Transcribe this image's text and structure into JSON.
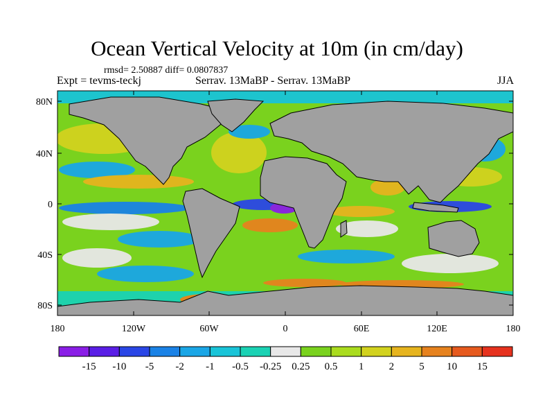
{
  "title": "Ocean Vertical Velocity at 10m (in cm/day)",
  "stats": "rmsd= 2.50887 diff= 0.0807837",
  "left_label": "Expt = tevms-teckj",
  "center_label": "Serrav.   13MaBP - Serrav.   13MaBP",
  "right_label": "JJA",
  "lat_ticks": [
    "80N",
    "40N",
    "0",
    "40S",
    "80S"
  ],
  "lon_ticks": [
    "180",
    "120W",
    "60W",
    "0",
    "60E",
    "120E",
    "180"
  ],
  "colorbar": {
    "colors": [
      "#8a1ee6",
      "#5a1ee6",
      "#2a46e6",
      "#1a82e6",
      "#1aa6e6",
      "#19c4d8",
      "#1ad2b4",
      "#e8e8e8",
      "#7ad21e",
      "#aadc1e",
      "#d2d21e",
      "#e6b41e",
      "#e6821e",
      "#e65a1e",
      "#e6321e"
    ],
    "labels": [
      "-15",
      "-10",
      "-5",
      "-2",
      "-1",
      "-0.5",
      "-0.25",
      "0.25",
      "0.5",
      "1",
      "2",
      "5",
      "10",
      "15"
    ]
  },
  "colors": {
    "land": "#a0a0a0",
    "coast": "#000000"
  }
}
